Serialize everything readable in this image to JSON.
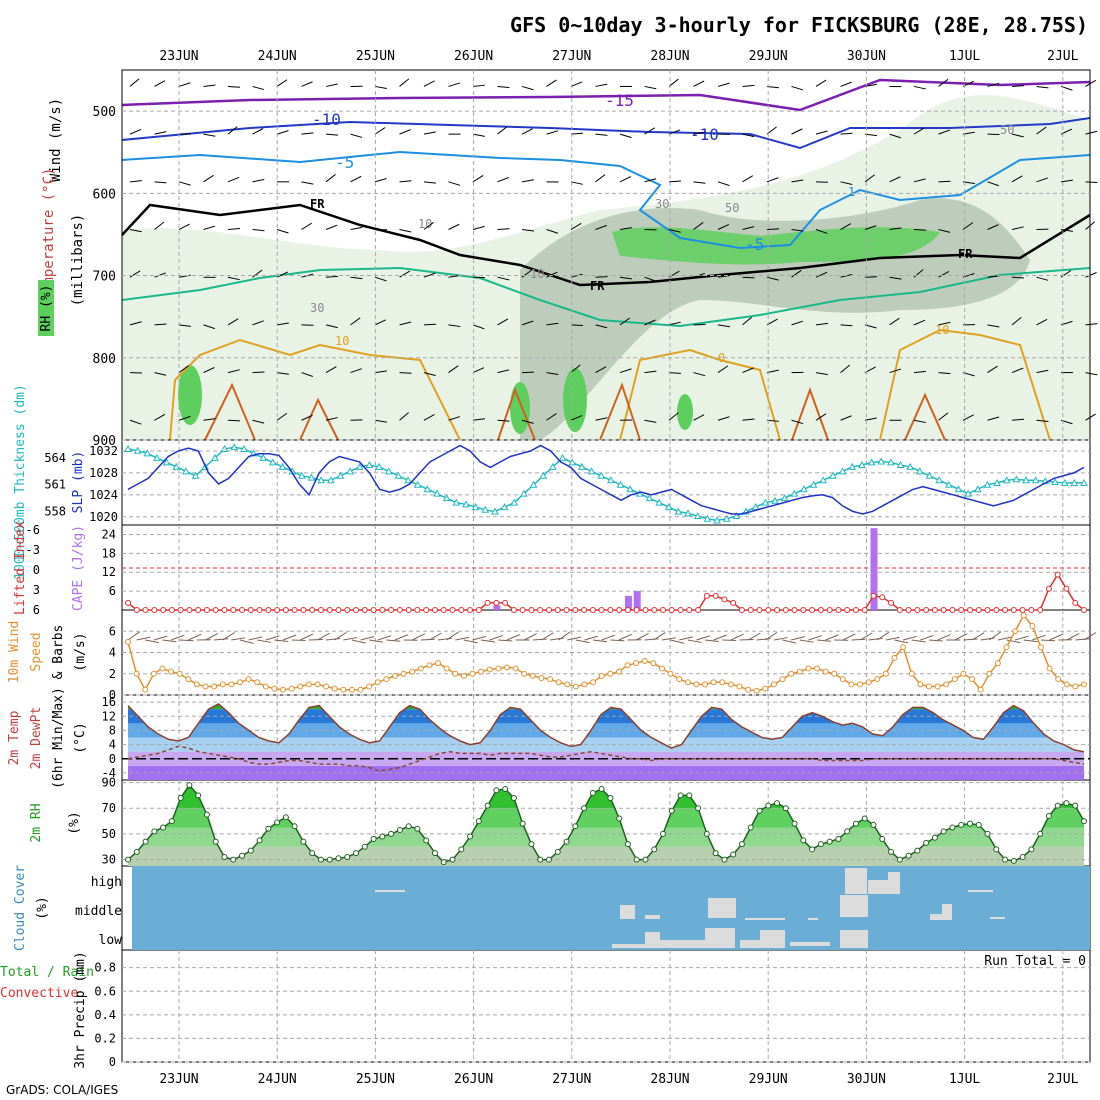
{
  "title": "GFS 0~10day 3-hourly for FICKSBURG (28E, 28.75S)",
  "credit": "GrADS: COLA/IGES",
  "colors": {
    "frame": "#000000",
    "grid": "#a8a8a8",
    "purple": "#7a1fb0",
    "blue": "#2238c8",
    "lightblue": "#1c8fe0",
    "freeze": "#000000",
    "teal": "#18b888",
    "orange": "#e0a020",
    "darkorange": "#d06020",
    "rh_light": "#e6f2e3",
    "rh_mid": "#b9c8b7",
    "rh_dark": "#8ea68c",
    "rh_green": "#5ecf5e",
    "thickness": "#20b8c0",
    "slp": "#2030c8",
    "cape": "#b070f0",
    "lifted": "#e03030",
    "wind": "#e09030",
    "barb": "#7a6050",
    "cloud_bg": "#6aaed6",
    "cloud_fill": "#dcdcdc",
    "dewpt": "#8a4a30",
    "temp_line": "#8a4030"
  },
  "x_axis": {
    "dates": [
      "23JUN",
      "24JUN",
      "25JUN",
      "26JUN",
      "27JUN",
      "28JUN",
      "29JUN",
      "30JUN",
      "1JUL",
      "2JUL"
    ]
  },
  "panels": {
    "upper_air": {
      "labels": {
        "wind": "Wind (m/s)",
        "temperature": "Temperature (°C)",
        "rh": "RH (%)",
        "millibars": "(millibars)"
      },
      "y_ticks": [
        "500",
        "600",
        "700",
        "800",
        "900"
      ],
      "contour_labels": [
        "-15",
        "-10",
        "-10",
        "-5",
        "-5",
        "FR",
        "FR",
        "FR",
        "10",
        "10",
        "0",
        "30",
        "30",
        "50",
        "50",
        "10",
        "10",
        "1"
      ]
    },
    "thickness_slp": {
      "label_thickness": "1000~500mb Thickness (dm)",
      "label_slp": "SLP (mb)",
      "thickness_ticks": [
        "564",
        "561",
        "558"
      ],
      "slp_ticks": [
        "1032",
        "1028",
        "1024",
        "1020"
      ]
    },
    "cape": {
      "label_li": "Lifted Index",
      "label_cape": "CAPE (J/kg)",
      "li_ticks": [
        "-6",
        "-3",
        "0",
        "3",
        "6"
      ],
      "cape_ticks": [
        "24",
        "18",
        "12",
        "6"
      ]
    },
    "wind10m": {
      "label_1": "10m Wind",
      "label_2": "Speed",
      "label_3": "& Barbs",
      "label_unit": "(m/s)",
      "ticks": [
        "6",
        "4",
        "2",
        "0"
      ]
    },
    "temp2m": {
      "label_1": "2m Temp",
      "label_2": "2m DewPt",
      "label_3": "(6hr Min/Max)",
      "label_unit": "(°C)",
      "ticks": [
        "16",
        "12",
        "8",
        "4",
        "0",
        "-4"
      ]
    },
    "rh2m": {
      "label": "2m RH",
      "label_unit": "(%)",
      "ticks": [
        "90",
        "70",
        "50",
        "30"
      ]
    },
    "cloud": {
      "label": "Cloud Cover",
      "label_unit": "(%)",
      "levels": [
        "high",
        "middle",
        "low"
      ]
    },
    "precip": {
      "label_total": "Total / Rain",
      "label_conv": "Convective",
      "label_axis": "3hr Precip (mm)",
      "run_total": "Run Total = 0",
      "ticks": [
        "0.8",
        "0.6",
        "0.4",
        "0.2",
        "0"
      ]
    }
  },
  "chart_data": [
    {
      "type": "line",
      "name": "2m Temp",
      "unit": "°C",
      "x_start": "22JUN 12Z",
      "x_step_hours": 3,
      "ylim": [
        -6,
        18
      ],
      "series": [
        {
          "name": "2m Temp",
          "values": [
            15,
            12,
            9,
            7,
            5.5,
            5,
            6,
            10,
            14,
            15.5,
            13,
            10,
            8,
            6,
            5,
            4.5,
            7,
            11,
            14.5,
            15,
            12,
            9,
            7,
            5.5,
            4.5,
            5,
            9,
            13,
            15,
            14,
            11,
            8.5,
            6.5,
            5,
            4,
            4.5,
            8,
            12.5,
            14.5,
            14,
            11,
            8,
            6,
            4.5,
            3.5,
            4,
            8,
            12.5,
            14.5,
            14,
            11,
            8,
            6,
            4.5,
            3,
            4,
            8,
            12,
            14.5,
            14,
            11,
            9,
            7.5,
            6,
            5.5,
            6,
            9,
            12,
            13,
            12,
            10.5,
            9.5,
            10,
            9,
            7,
            6.5,
            9,
            12.5,
            14.5,
            14.5,
            13,
            11,
            9.5,
            8,
            6,
            5.5,
            9,
            13,
            15,
            13.5,
            10,
            7,
            5,
            4,
            2.5,
            2
          ]
        },
        {
          "name": "2m DewPt",
          "values": [
            0,
            0.5,
            1,
            1.5,
            2.5,
            3.5,
            3,
            2,
            1.5,
            1,
            0.5,
            0,
            -1,
            -1.5,
            -1.5,
            -1,
            -0.5,
            -0.5,
            -1,
            -1.5,
            -1.5,
            -1.5,
            -2,
            -2,
            -2.5,
            -3.5,
            -3,
            -2.5,
            -1.5,
            -0.5,
            0.5,
            1.5,
            2,
            1.5,
            1.5,
            1.5,
            1,
            1.5,
            1.5,
            1.5,
            1.5,
            1,
            0.5,
            0.5,
            1,
            1.5,
            2,
            1.5,
            1,
            0.5,
            0,
            0,
            -0.5,
            0,
            0,
            0,
            0,
            0,
            0,
            0,
            0,
            0,
            0,
            0,
            0,
            0,
            0,
            0,
            0,
            -0.5,
            -0.5,
            -0.5,
            -0.5,
            -0.5,
            0,
            0,
            0,
            0,
            0,
            0,
            0,
            0,
            0,
            0,
            0,
            0,
            0,
            0,
            0,
            0,
            0,
            0,
            0,
            -0.5,
            -1,
            -1.5
          ]
        }
      ]
    },
    {
      "type": "line",
      "name": "2m RH",
      "unit": "%",
      "ylim": [
        25,
        92
      ],
      "values": [
        30,
        36,
        44,
        52,
        55,
        60,
        78,
        88,
        80,
        65,
        44,
        32,
        30,
        33,
        37,
        45,
        54,
        59,
        63,
        56,
        44,
        35,
        30,
        30,
        31,
        32,
        35,
        40,
        46,
        48,
        50,
        53,
        56,
        54,
        45,
        35,
        28,
        30,
        38,
        48,
        60,
        72,
        84,
        85,
        78,
        58,
        42,
        30,
        30,
        36,
        44,
        56,
        70,
        82,
        85,
        78,
        62,
        42,
        30,
        30,
        38,
        50,
        68,
        80,
        80,
        70,
        50,
        35,
        30,
        34,
        42,
        55,
        68,
        72,
        74,
        70,
        58,
        45,
        38,
        42,
        44,
        46,
        52,
        58,
        62,
        57,
        46,
        36,
        30,
        33,
        37,
        43,
        47,
        52,
        55,
        57,
        58,
        57,
        50,
        38,
        30,
        29,
        32,
        38,
        50,
        64,
        72,
        74,
        72,
        60
      ]
    },
    {
      "type": "line",
      "name": "10m Wind Speed",
      "unit": "m/s",
      "ylim": [
        0,
        8
      ],
      "values": [
        5,
        2,
        0.5,
        2,
        2.5,
        2.2,
        2,
        1.5,
        1,
        0.8,
        0.8,
        1,
        1,
        1.2,
        1.5,
        1.2,
        0.8,
        0.6,
        0.5,
        0.6,
        0.8,
        1,
        1,
        0.8,
        0.6,
        0.5,
        0.5,
        0.5,
        0.8,
        1.2,
        1.5,
        1.8,
        2,
        2.2,
        2.5,
        2.8,
        3,
        2.5,
        2,
        1.8,
        2,
        2.2,
        2.4,
        2.5,
        2.6,
        2.5,
        2,
        1.8,
        1.6,
        1.5,
        1.2,
        1,
        0.8,
        1,
        1.2,
        1.8,
        2,
        2.2,
        2.8,
        3,
        3.2,
        3,
        2.5,
        2,
        1.5,
        1.2,
        1,
        1,
        1.2,
        1.2,
        1,
        0.8,
        0.5,
        0.4,
        0.6,
        1,
        1.5,
        2,
        2.2,
        2.5,
        2.5,
        2.2,
        2,
        1.5,
        1,
        1,
        1.2,
        1.5,
        2,
        3.5,
        4.5,
        2,
        1,
        0.8,
        0.8,
        1,
        1.5,
        2,
        1.5,
        0.5,
        2,
        3,
        4.5,
        6,
        7.5,
        6.5,
        4.5,
        2.5,
        1.5,
        1,
        0.8,
        1
      ]
    },
    {
      "type": "line",
      "name": "1000~500mb Thickness / SLP",
      "series": [
        {
          "name": "1000~500mb Thickness (dm)",
          "unit": "dm",
          "ylim": [
            556.5,
            566
          ],
          "values": [
            565,
            564.8,
            564.5,
            564,
            563.5,
            563,
            562.5,
            562,
            563,
            564,
            565,
            565.2,
            565,
            564.5,
            564,
            563.5,
            563,
            562.5,
            562,
            561.8,
            561.5,
            561.5,
            562,
            562.5,
            563,
            563.2,
            563,
            562.5,
            562,
            561.5,
            561,
            560.5,
            560,
            559.5,
            559,
            558.8,
            558.5,
            558.2,
            558,
            558.5,
            559,
            560,
            561,
            562,
            563,
            564,
            563.5,
            563,
            562.5,
            562,
            561.5,
            561,
            560.5,
            560,
            559.5,
            559,
            558.5,
            558,
            557.8,
            557.5,
            557.2,
            557,
            557.2,
            557.5,
            558,
            558.5,
            559,
            559.2,
            559.5,
            560,
            560.5,
            561,
            561.5,
            562,
            562.5,
            563,
            563.2,
            563.5,
            563.6,
            563.5,
            563.2,
            563,
            562.5,
            562,
            561.5,
            561,
            560.5,
            560,
            560.5,
            561,
            561.2,
            561.5,
            561.6,
            561.5,
            561.5,
            561.4,
            561.3,
            561.2,
            561.2,
            561.2
          ]
        },
        {
          "name": "SLP (mb)",
          "unit": "mb",
          "ylim": [
            1018.5,
            1034
          ],
          "values": [
            1025,
            1026,
            1027,
            1029,
            1031,
            1032,
            1032.5,
            1032,
            1028,
            1026,
            1027,
            1029,
            1031,
            1031.5,
            1031.5,
            1031.2,
            1029,
            1026,
            1024,
            1028,
            1030,
            1031,
            1030.5,
            1030,
            1028,
            1025,
            1024.5,
            1025,
            1026,
            1028,
            1030,
            1031,
            1032,
            1033,
            1032,
            1030,
            1029,
            1030,
            1031,
            1031.5,
            1032,
            1033,
            1032,
            1030,
            1029,
            1027,
            1026,
            1025,
            1024,
            1023,
            1024,
            1024.5,
            1024,
            1024.5,
            1025,
            1024,
            1023,
            1022,
            1021.5,
            1021,
            1020.5,
            1020.5,
            1021,
            1021.5,
            1022,
            1022.5,
            1023,
            1023.5,
            1023.8,
            1024,
            1023.5,
            1022,
            1021,
            1020.5,
            1021,
            1022,
            1023,
            1024,
            1025,
            1025.5,
            1025,
            1024.5,
            1024,
            1023.5,
            1023,
            1022.5,
            1022,
            1022.5,
            1023,
            1024,
            1025,
            1026,
            1027,
            1027.5,
            1028,
            1029
          ]
        }
      ]
    },
    {
      "type": "bar",
      "name": "CAPE",
      "unit": "J/kg",
      "ylim": [
        0,
        27
      ],
      "bars": [
        {
          "x_index": 42,
          "value": 1.5
        },
        {
          "x_index": 57,
          "value": 4.5
        },
        {
          "x_index": 58,
          "value": 6
        },
        {
          "x_index": 85,
          "value": 26
        }
      ]
    },
    {
      "type": "line",
      "name": "Lifted Index",
      "unit": "°C",
      "ylim": [
        6,
        -6
      ],
      "values": [
        5,
        6,
        6,
        6,
        6,
        6,
        6,
        6,
        6,
        6,
        6,
        6,
        6,
        6,
        6,
        6,
        6,
        6,
        6,
        6,
        6,
        6,
        6,
        6,
        6,
        6,
        6,
        6,
        6,
        6,
        6,
        6,
        6,
        6,
        6,
        6,
        6,
        6,
        6,
        6,
        6,
        5,
        5,
        5,
        6,
        6,
        6,
        6,
        6,
        6,
        6,
        6,
        6,
        6,
        6,
        6,
        6,
        6,
        6,
        6,
        6,
        6,
        6,
        6,
        6,
        6,
        4,
        4,
        4.5,
        5,
        6,
        6,
        6,
        6,
        6,
        6,
        6,
        6,
        6,
        6,
        6,
        6,
        6,
        6,
        6,
        4,
        4.2,
        5,
        6,
        6,
        6,
        6,
        6,
        6,
        6,
        6,
        6,
        6,
        6,
        6,
        6,
        6,
        6,
        6,
        6,
        3,
        1,
        3,
        5,
        6
      ]
    }
  ]
}
